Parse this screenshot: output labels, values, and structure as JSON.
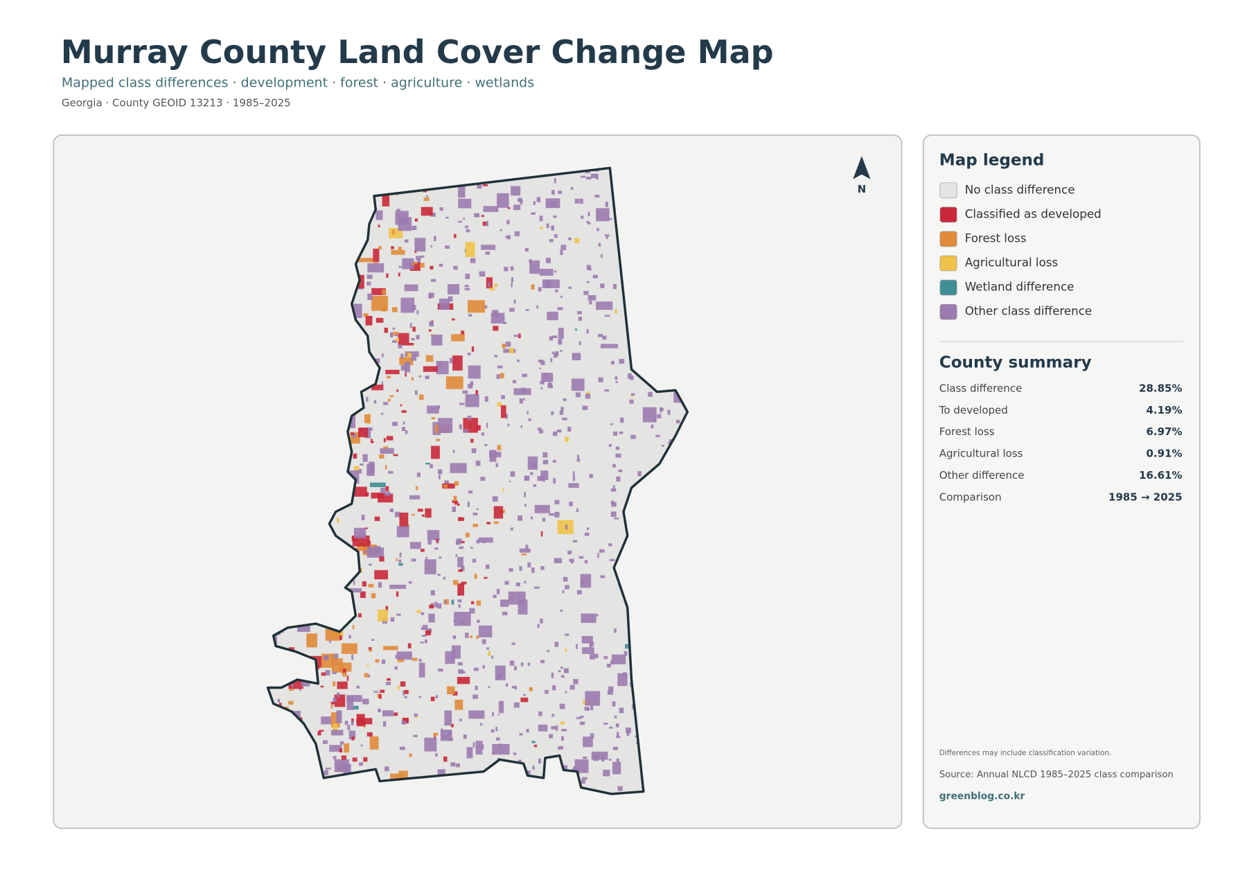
{
  "header": {
    "title": "Murray County Land Cover Change Map",
    "subtitle": "Mapped class differences · development · forest · agriculture · wetlands",
    "meta": "Georgia · County GEOID 13213 · 1985–2025"
  },
  "map": {
    "north_label": "N"
  },
  "legend": {
    "title": "Map legend",
    "items": [
      {
        "label": "No class difference",
        "color": "#e4e4e2"
      },
      {
        "label": "Classified as developed",
        "color": "#c9283a"
      },
      {
        "label": "Forest loss",
        "color": "#e08a3a"
      },
      {
        "label": "Agricultural loss",
        "color": "#f0c24a"
      },
      {
        "label": "Wetland difference",
        "color": "#3f8d95"
      },
      {
        "label": "Other class difference",
        "color": "#9b7bb0"
      }
    ]
  },
  "summary": {
    "title": "County summary",
    "rows": [
      {
        "label": "Class difference",
        "value": "28.85%"
      },
      {
        "label": "To developed",
        "value": "4.19%"
      },
      {
        "label": "Forest loss",
        "value": "6.97%"
      },
      {
        "label": "Agricultural loss",
        "value": "0.91%"
      },
      {
        "label": "Other difference",
        "value": "16.61%"
      },
      {
        "label": "Comparison",
        "value": "1985 → 2025"
      }
    ]
  },
  "footer": {
    "note": "Differences may include classification variation.",
    "source": "Source: Annual NLCD 1985–2025 class comparison",
    "credit": "greenblog.co.kr"
  }
}
